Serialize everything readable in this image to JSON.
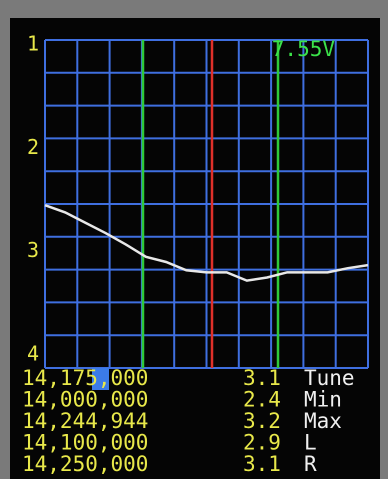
{
  "chart_data": {
    "type": "line",
    "voltage": "7.55V",
    "values": [
      2.55,
      2.62,
      2.72,
      2.82,
      2.93,
      3.05,
      3.1,
      3.18,
      3.2,
      3.2,
      3.28,
      3.25,
      3.2,
      3.2,
      3.2,
      3.16,
      3.13
    ],
    "color": "#e8e8e8",
    "ylim": [
      1,
      4
    ],
    "yticks": [
      1,
      2,
      3,
      4
    ],
    "y_inverted": true
  },
  "readouts": [
    [
      "14,175,000",
      3.1,
      "Tune"
    ],
    [
      "14,000,000",
      2.4,
      "Min"
    ],
    [
      "14,244,944",
      3.2,
      "Max"
    ],
    [
      "14,100,000",
      2.9,
      "L"
    ],
    [
      "14,250,000",
      3.1,
      "R"
    ]
  ]
}
